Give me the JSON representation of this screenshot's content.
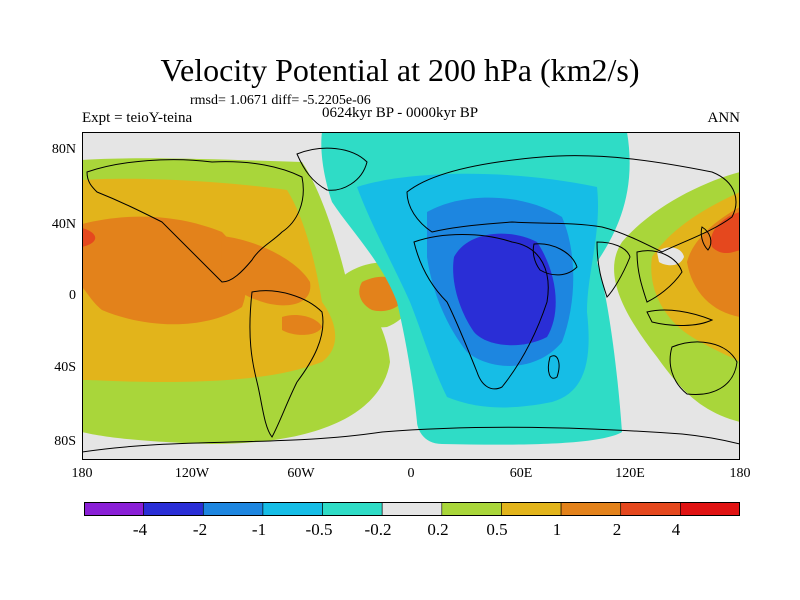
{
  "title": "Velocity Potential at 200 hPa (km2/s)",
  "stats": "rmsd= 1.0671 diff= -5.2205e-06",
  "left_label": "Expt = teioY-teina",
  "center_label": "0624kyr BP - 0000kyr BP",
  "right_label": "ANN",
  "lat_labels": [
    "80N",
    "40N",
    "0",
    "40S",
    "80S"
  ],
  "lon_labels": [
    "180",
    "120W",
    "60W",
    "0",
    "60E",
    "120E",
    "180"
  ],
  "colorbar": {
    "labels": [
      "-4",
      "-2",
      "-1",
      "-0.5",
      "-0.2",
      "0.2",
      "0.5",
      "1",
      "2",
      "4"
    ],
    "colors": [
      "#8a1fd6",
      "#2a2ed6",
      "#1d86e0",
      "#16bde6",
      "#2fdcc6",
      "#e5e5e5",
      "#a9d63a",
      "#e2b41b",
      "#e3821b",
      "#e5481e",
      "#e01313"
    ]
  },
  "fill_colors": {
    "neg4": "#8a1fd6",
    "neg2": "#2a2ed6",
    "neg1": "#1d86e0",
    "neg05": "#16bde6",
    "neg02": "#2fdcc6",
    "zero": "#e5e5e5",
    "pos02": "#a9d63a",
    "pos05": "#e2b41b",
    "pos1": "#e3821b",
    "pos2": "#e5481e"
  }
}
